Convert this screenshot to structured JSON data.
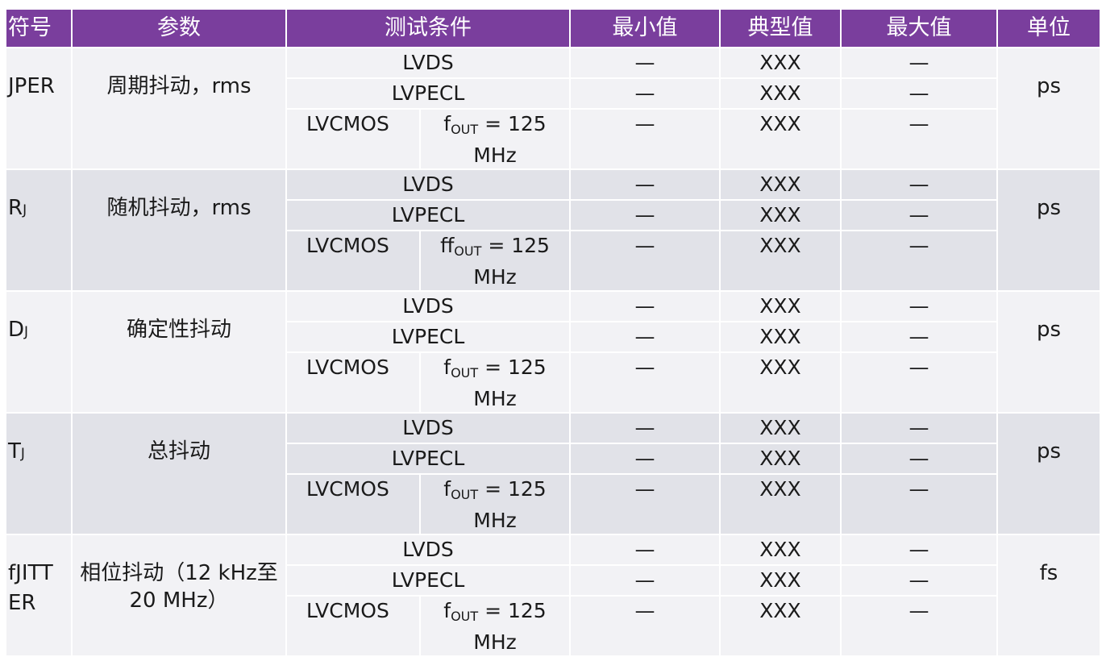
{
  "header": {
    "symbol": "符号",
    "param": "参数",
    "cond": "测试条件",
    "min": "最小值",
    "typ": "典型值",
    "max": "最大值",
    "unit": "单位"
  },
  "groups": [
    {
      "symbol": "JPER",
      "symbol_sub": "",
      "param": "周期抖动，rms",
      "unit": "ps",
      "fout_prefix": "f",
      "fout_sub": "OUT",
      "fout_rest": " = 125",
      "fout_line2": "MHz"
    },
    {
      "symbol": "R",
      "symbol_sub": "J",
      "param": "随机抖动，rms",
      "unit": "ps",
      "fout_prefix": "ff",
      "fout_sub": "OUT",
      "fout_rest": " = 125",
      "fout_line2": "MHz"
    },
    {
      "symbol": "D",
      "symbol_sub": "J",
      "param": "确定性抖动",
      "unit": "ps",
      "fout_prefix": "f",
      "fout_sub": "OUT",
      "fout_rest": " = 125",
      "fout_line2": "MHz"
    },
    {
      "symbol": "T",
      "symbol_sub": "J",
      "param": "总抖动",
      "unit": "ps",
      "fout_prefix": "f",
      "fout_sub": "OUT",
      "fout_rest": " = 125",
      "fout_line2": "MHz"
    },
    {
      "symbol": "fJITT",
      "symbol_line2": "ER",
      "symbol_sub": "",
      "param": "相位抖动（12 kHz至",
      "param_line2": "20 MHz）",
      "unit": "fs",
      "fout_prefix": "f",
      "fout_sub": "OUT",
      "fout_rest": " = 125",
      "fout_line2": "MHz"
    }
  ],
  "rows": {
    "lvds": "LVDS",
    "lvpecl": "LVPECL",
    "lvcmos": "LVCMOS",
    "min": "—",
    "typ": "XXX",
    "max": "—"
  },
  "colors": {
    "header_bg": "#7a3e9d",
    "row_light": "#f2f2f5",
    "row_dark": "#e1e2e8"
  }
}
